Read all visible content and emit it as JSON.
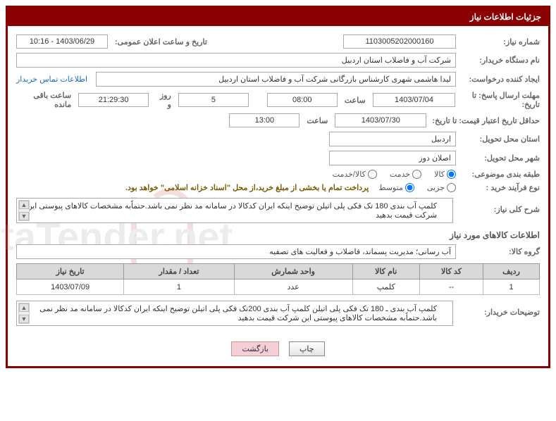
{
  "panel_title": "جزئیات اطلاعات نیاز",
  "need_number": {
    "label": "شماره نیاز:",
    "value": "1103005202000160"
  },
  "announce": {
    "label": "تاریخ و ساعت اعلان عمومی:",
    "value": "1403/06/29 - 10:16"
  },
  "buyer": {
    "label": "نام دستگاه خریدار:",
    "value": "شرکت آب و فاضلاب استان اردبیل"
  },
  "requester": {
    "label": "ایجاد کننده درخواست:",
    "value": "لیدا  هاشمی شهری کارشناس بازرگانی شرکت آب و فاضلاب استان اردبیل",
    "contact_link": "اطلاعات تماس خریدار"
  },
  "deadline": {
    "label": "مهلت ارسال پاسخ: تا تاریخ:",
    "date": "1403/07/04",
    "time_label": "ساعت",
    "time": "08:00",
    "days": "5",
    "days_label": "روز و",
    "countdown": "21:29:30",
    "remain_label": "ساعت باقی مانده"
  },
  "min_valid": {
    "label": "حداقل تاریخ اعتبار قیمت: تا تاریخ:",
    "date": "1403/07/30",
    "time_label": "ساعت",
    "time": "13:00"
  },
  "delivery_province": {
    "label": "استان محل تحویل:",
    "value": "اردبیل"
  },
  "delivery_city": {
    "label": "شهر محل تحویل:",
    "value": "اصلان دوز"
  },
  "category": {
    "label": "طبقه بندی موضوعی:",
    "options": [
      "کالا",
      "خدمت",
      "کالا/خدمت"
    ],
    "selected": 0
  },
  "process": {
    "label": "نوع فرآیند خرید :",
    "options": [
      "جزیی",
      "متوسط"
    ],
    "selected": 1,
    "note": "پرداخت تمام یا بخشی از مبلغ خرید،از محل \"اسناد خزانه اسلامی\" خواهد بود."
  },
  "general_desc": {
    "label": "شرح کلی نیاز:",
    "text": "کلمپ آب بندی 180 تک فکی پلی اتیلن توضیح اینکه ایران کدکالا در سامانه مد نظر نمی باشد.حتماًبه مشخصات کالاهای پیوستی این شرکت قیمت بدهید"
  },
  "items_title": "اطلاعات کالاهای مورد نیاز",
  "group": {
    "label": "گروه کالا:",
    "value": "آب رسانی؛ مدیریت پسماند، فاضلاب و فعالیت های تصفیه"
  },
  "table": {
    "headers": [
      "ردیف",
      "کد کالا",
      "نام کالا",
      "واحد شمارش",
      "تعداد / مقدار",
      "تاریخ نیاز"
    ],
    "rows": [
      [
        "1",
        "--",
        "کلمپ",
        "عدد",
        "1",
        "1403/07/09"
      ]
    ]
  },
  "buyer_notes": {
    "label": "توضیحات خریدار:",
    "text": "کلمپ آب بندی ـ 180 تک فکی پلی اتیلن کلمپ آب بندی 200تک فکی پلی اتیلن توضیح اینکه ایران کدکالا در سامانه مد نظر نمی باشد.حتماًبه مشخصات کالاهای پیوستی این شرکت قیمت بدهید"
  },
  "buttons": {
    "print": "چاپ",
    "back": "بازگشت"
  }
}
